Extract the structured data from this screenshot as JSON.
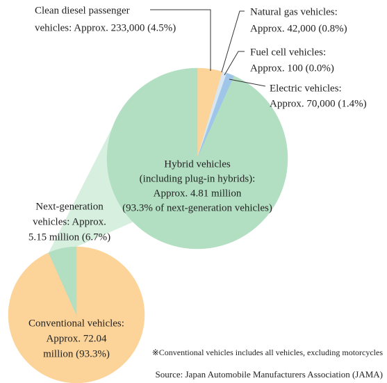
{
  "chart_data": [
    {
      "type": "pie",
      "values": [
        93.3,
        6.7
      ],
      "colors": [
        "#fcd49a",
        "#b2dfc2"
      ],
      "value_labels": [
        [
          "Conventional vehicles:",
          "Approx. 72.04",
          "million (93.3%)"
        ],
        [
          "Next-generation",
          "vehicles: Approx.",
          "5.15 million (6.7%)"
        ]
      ]
    },
    {
      "type": "pie",
      "values": [
        4.5,
        0.8,
        0.0,
        1.4,
        93.3
      ],
      "colors": [
        "#fcd49a",
        "#d9e7f3",
        "#c4daef",
        "#9fc6e8",
        "#b2dfc2"
      ],
      "value_labels": [
        [
          "Clean diesel passenger",
          "vehicles: Approx. 233,000 (4.5%)"
        ],
        [
          "Natural gas vehicles:",
          "Approx. 42,000 (0.8%)"
        ],
        [
          "Fuel cell vehicles:",
          "Approx. 100 (0.0%)"
        ],
        [
          "Electric vehicles:",
          "Approx. 70,000 (1.4%)"
        ],
        [
          "Hybrid vehicles",
          "(including plug-in hybrids):",
          "Approx. 4.81 million",
          "(93.3% of next-generation vehicles)"
        ]
      ]
    }
  ],
  "note": "※Conventional vehicles includes all vehicles, excluding motorcycles",
  "source": "Source: Japan Automobile Manufacturers Association (JAMA)"
}
